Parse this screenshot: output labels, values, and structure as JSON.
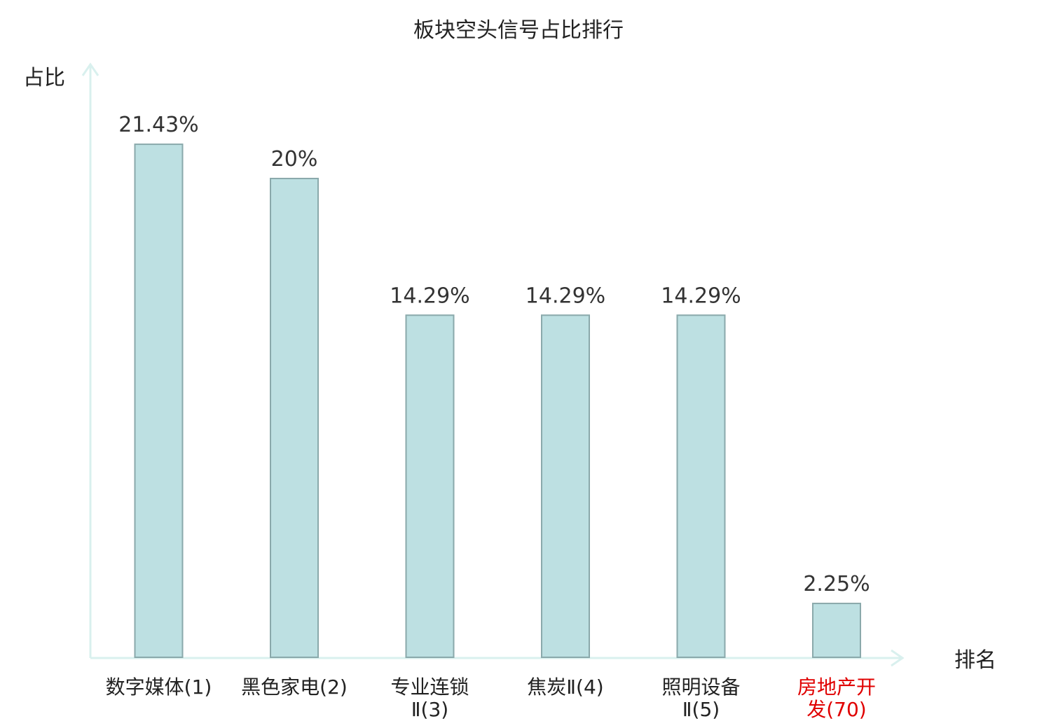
{
  "chart_data": {
    "type": "bar",
    "title": "板块空头信号占比排行",
    "xlabel": "排名",
    "ylabel": "占比",
    "categories": [
      "数字媒体(1)",
      "黑色家电(2)",
      "专业连锁Ⅱ(3)",
      "焦炭Ⅱ(4)",
      "照明设备Ⅱ(5)",
      "房地产开发(70)"
    ],
    "category_lines": [
      [
        "数字媒体(1)"
      ],
      [
        "黑色家电(2)"
      ],
      [
        "专业连锁",
        "Ⅱ(3)"
      ],
      [
        "焦炭Ⅱ(4)"
      ],
      [
        "照明设备",
        "Ⅱ(5)"
      ],
      [
        "房地产开",
        "发(70)"
      ]
    ],
    "values": [
      21.43,
      20,
      14.29,
      14.29,
      14.29,
      2.25
    ],
    "value_labels": [
      "21.43%",
      "20%",
      "14.29%",
      "14.29%",
      "14.29%",
      "2.25%"
    ],
    "highlight_index": 5,
    "ylim": [
      0,
      24
    ],
    "grid": false,
    "legend": "none",
    "colors": {
      "bar_fill": "#bde0e2",
      "bar_stroke": "#8aa9ab",
      "axis": "#d9f0ee",
      "highlight_label": "#e00000",
      "value_label": "#333333",
      "text": "#222222"
    }
  }
}
